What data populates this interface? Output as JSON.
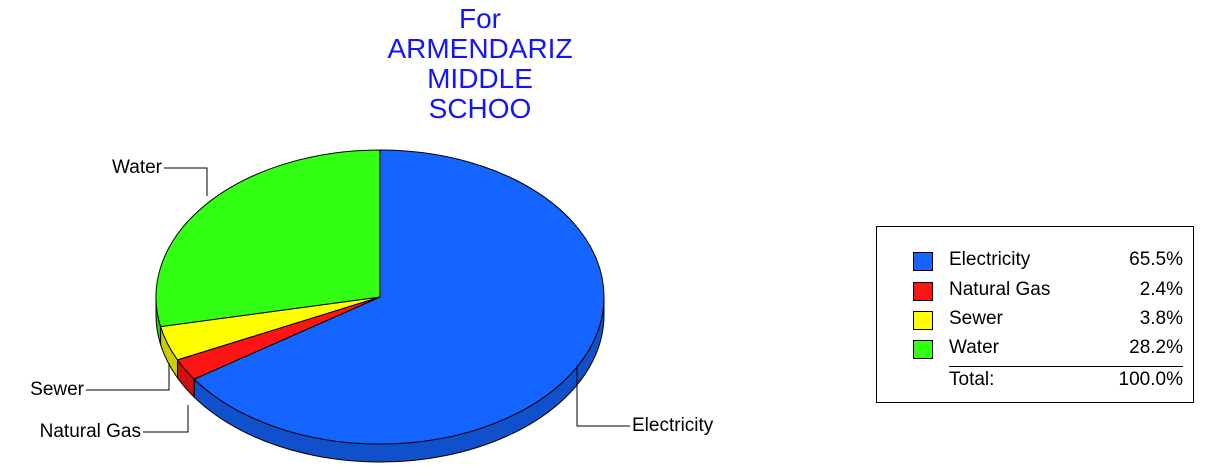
{
  "chart_data": {
    "type": "pie",
    "title_lines": [
      "For",
      "ARMENDARIZ",
      "MIDDLE",
      "SCHOO"
    ],
    "slices": [
      {
        "label": "Electricity",
        "percent_label": "65.5%",
        "value": 65.5,
        "color": "#1464ff"
      },
      {
        "label": "Natural Gas",
        "percent_label": "2.4%",
        "value": 2.4,
        "color": "#ff1414"
      },
      {
        "label": "Sewer",
        "percent_label": "3.8%",
        "value": 3.8,
        "color": "#ffff00"
      },
      {
        "label": "Water",
        "percent_label": "28.2%",
        "value": 28.2,
        "color": "#32ff14"
      }
    ],
    "legend": {
      "placement": "right",
      "total_label": "Total:",
      "total_value": "100.0%"
    }
  }
}
